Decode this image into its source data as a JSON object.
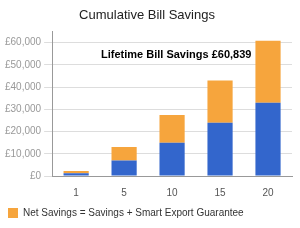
{
  "chart_data": {
    "type": "bar",
    "title": "Cumulative Bill Savings",
    "annotation": "Lifetime Bill Savings £60,839",
    "categories": [
      "1",
      "5",
      "10",
      "15",
      "20"
    ],
    "series": [
      {
        "color": "#3366cc",
        "values": [
          1200,
          7000,
          15000,
          24000,
          33000
        ]
      },
      {
        "name": "Net Savings = Savings + Smart Export Guarantee",
        "color": "#f6a53d",
        "values": [
          1000,
          6000,
          12500,
          19000,
          27839
        ]
      }
    ],
    "stacked": true,
    "ylim": [
      0,
      65000
    ],
    "yticks": [
      {
        "value": 0,
        "label": "£0"
      },
      {
        "value": 10000,
        "label": "£10,000"
      },
      {
        "value": 20000,
        "label": "£20,000"
      },
      {
        "value": 30000,
        "label": "£30,000"
      },
      {
        "value": 40000,
        "label": "£40,000"
      },
      {
        "value": 50000,
        "label": "£50,000"
      },
      {
        "value": 60000,
        "label": "£60,000"
      }
    ],
    "grid": true,
    "legend": "bottom"
  }
}
